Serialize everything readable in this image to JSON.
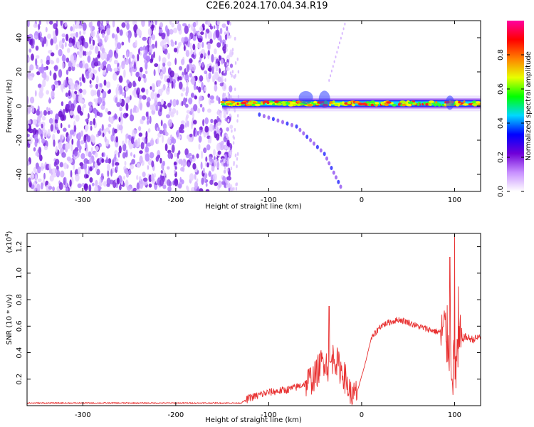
{
  "title": "C2E6.2024.170.04.34.R19",
  "chart_data": [
    {
      "type": "heatmap",
      "xlabel": "Height of straight line (km)",
      "ylabel": "Frequency (Hz)",
      "xlim": [
        -360,
        128
      ],
      "ylim": [
        -50,
        50
      ],
      "xticks": [
        -300,
        -200,
        -100,
        0,
        100
      ],
      "yticks": [
        -40,
        -20,
        0,
        20,
        40
      ],
      "colorbar": {
        "label": "Normalized spectral amplitude",
        "range": [
          0.0,
          1.0
        ],
        "ticks": [
          0.0,
          0.2,
          0.4,
          0.6,
          0.8
        ],
        "tick_labels": [
          "0.0",
          "0.2",
          "0.4",
          "0.6",
          "0.8"
        ],
        "colors": [
          "#ffffff",
          "#c890ff",
          "#7000d8",
          "#0000ff",
          "#00d8ff",
          "#00ff00",
          "#e8ff00",
          "#ff8000",
          "#ff0000",
          "#ff00a0"
        ]
      },
      "features": {
        "noise_region_x": [
          -360,
          -140
        ],
        "signal_band_x": [
          -150,
          128
        ],
        "signal_band_center_hz": 1.5,
        "upper_trace": {
          "x": [
            -18,
            -35
          ],
          "y": [
            48,
            15
          ]
        },
        "lower_trace": {
          "x": [
            -110,
            -70,
            -40,
            -20
          ],
          "y": [
            -5,
            -12,
            -28,
            -50
          ]
        }
      }
    },
    {
      "type": "line",
      "xlabel": "Height of straight line (km)",
      "ylabel": "SNR (10 * v/v)",
      "yscale_label": "(x10",
      "yscale_exp": "4",
      "yscale_close": ")",
      "xlim": [
        -360,
        128
      ],
      "ylim": [
        0,
        1.3
      ],
      "xticks": [
        -300,
        -200,
        -100,
        0,
        100
      ],
      "yticks": [
        0.2,
        0.4,
        0.6,
        0.8,
        1.0,
        1.2
      ],
      "ytick_labels": [
        "0.2",
        "0.4",
        "0.6",
        "0.8",
        "1.0",
        "1.2"
      ],
      "color": "#e83030",
      "series": [
        {
          "x": [
            -360,
            -300,
            -200,
            -130,
            -120,
            -110,
            -100,
            -90,
            -80,
            -70,
            -60,
            -50,
            -45,
            -40,
            -35,
            -30,
            -25,
            -20,
            -15,
            -10,
            -5,
            0,
            5,
            10,
            15,
            20,
            30,
            40,
            50,
            60,
            70,
            80,
            90,
            95,
            98,
            100,
            105,
            110,
            120,
            128
          ],
          "values": [
            0.02,
            0.02,
            0.02,
            0.02,
            0.06,
            0.08,
            0.1,
            0.11,
            0.12,
            0.14,
            0.17,
            0.22,
            0.3,
            0.35,
            0.28,
            0.38,
            0.3,
            0.25,
            0.15,
            0.05,
            0.1,
            0.22,
            0.35,
            0.5,
            0.55,
            0.6,
            0.63,
            0.65,
            0.63,
            0.6,
            0.58,
            0.56,
            0.55,
            0.45,
            0.3,
            0.25,
            0.45,
            0.52,
            0.5,
            0.52
          ]
        }
      ],
      "peaks": {
        "x": [
          -35,
          95,
          100,
          104
        ],
        "values": [
          0.75,
          1.12,
          1.3,
          0.9
        ]
      }
    }
  ]
}
